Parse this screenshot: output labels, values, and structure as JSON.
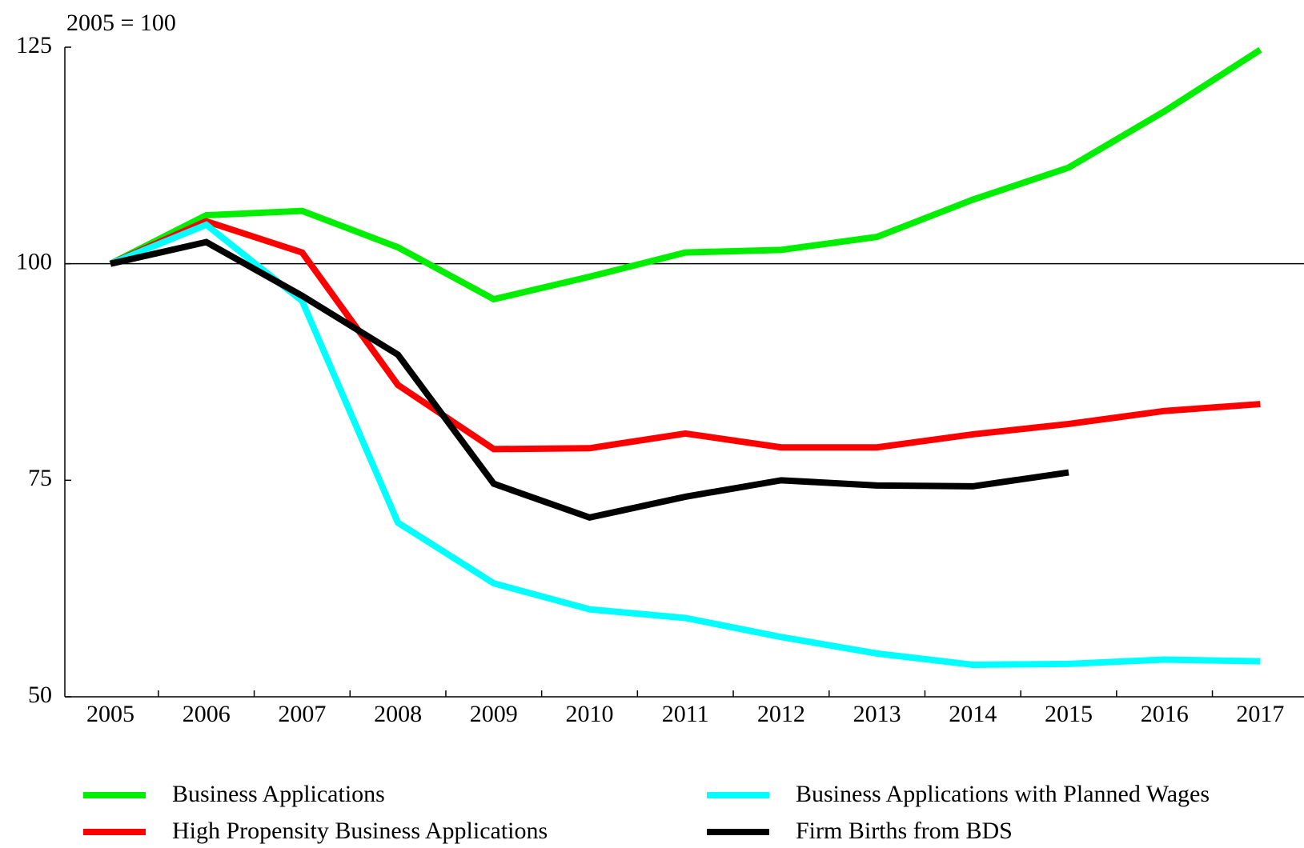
{
  "chart_data": {
    "type": "line",
    "axis_note": "2005 = 100",
    "categories": [
      "2005",
      "2006",
      "2007",
      "2008",
      "2009",
      "2010",
      "2011",
      "2012",
      "2013",
      "2014",
      "2015",
      "2016",
      "2017"
    ],
    "series": [
      {
        "name": "Business Applications",
        "color": "#00ee00",
        "values": [
          100,
          105.6,
          106.1,
          101.9,
          95.9,
          98.5,
          101.3,
          101.6,
          103.1,
          107.4,
          111.1,
          117.6,
          124.7
        ]
      },
      {
        "name": "High Propensity Business Applications",
        "color": "#ff0000",
        "values": [
          100,
          104.9,
          101.3,
          86.0,
          78.6,
          78.7,
          80.4,
          78.8,
          78.8,
          80.3,
          81.5,
          83.0,
          83.8
        ]
      },
      {
        "name": "Business Applications with Planned Wages",
        "color": "#00ffff",
        "values": [
          100,
          104.5,
          95.7,
          70.1,
          63.1,
          60.1,
          59.1,
          56.9,
          55.0,
          53.7,
          53.8,
          54.3,
          54.1
        ]
      },
      {
        "name": "Firm Births from BDS",
        "color": "#000000",
        "values": [
          100,
          102.5,
          96.3,
          89.5,
          74.6,
          70.7,
          73.1,
          75.0,
          74.4,
          74.3,
          75.9,
          null,
          null
        ]
      }
    ],
    "ylim": [
      50,
      125
    ],
    "yticks": [
      50,
      75,
      100,
      125
    ],
    "reference_line": 100,
    "grid": false
  }
}
